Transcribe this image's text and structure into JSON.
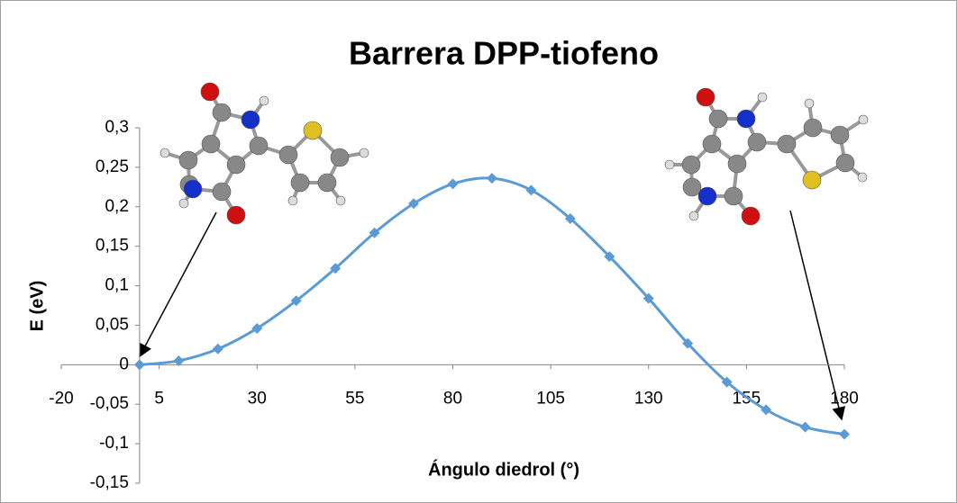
{
  "chart_data": {
    "type": "line",
    "title": "Barrera DPP-tiofeno",
    "x_label": "Ángulo diedrol (°)",
    "y_label": "E (eV)",
    "series": [
      {
        "color": "#5b9bd5",
        "x": [
          0,
          10,
          20,
          30,
          40,
          50,
          60,
          70,
          80,
          90,
          100,
          110,
          120,
          130,
          140,
          150,
          160,
          170,
          180
        ],
        "values": [
          0,
          0.005,
          0.02,
          0.046,
          0.081,
          0.122,
          0.167,
          0.204,
          0.229,
          0.236,
          0.221,
          0.185,
          0.137,
          0.084,
          0.027,
          -0.022,
          -0.057,
          -0.079,
          -0.088
        ]
      }
    ],
    "xlim": [
      -20,
      180
    ],
    "xticks": [
      -20,
      5,
      30,
      55,
      80,
      105,
      130,
      155,
      180
    ],
    "ylim": [
      -0.15,
      0.3
    ],
    "yticks": [
      {
        "value": -0.15,
        "label": "-0,15"
      },
      {
        "value": -0.1,
        "label": "-0,1"
      },
      {
        "value": -0.05,
        "label": "-0,05"
      },
      0,
      {
        "value": 0.05,
        "label": "0,05"
      },
      {
        "value": 0.1,
        "label": "0,1"
      },
      {
        "value": 0.15,
        "label": "0,15"
      },
      {
        "value": 0.2,
        "label": "0,2"
      },
      {
        "value": 0.25,
        "label": "0,25"
      },
      {
        "value": 0.3,
        "label": "0,3"
      }
    ]
  }
}
